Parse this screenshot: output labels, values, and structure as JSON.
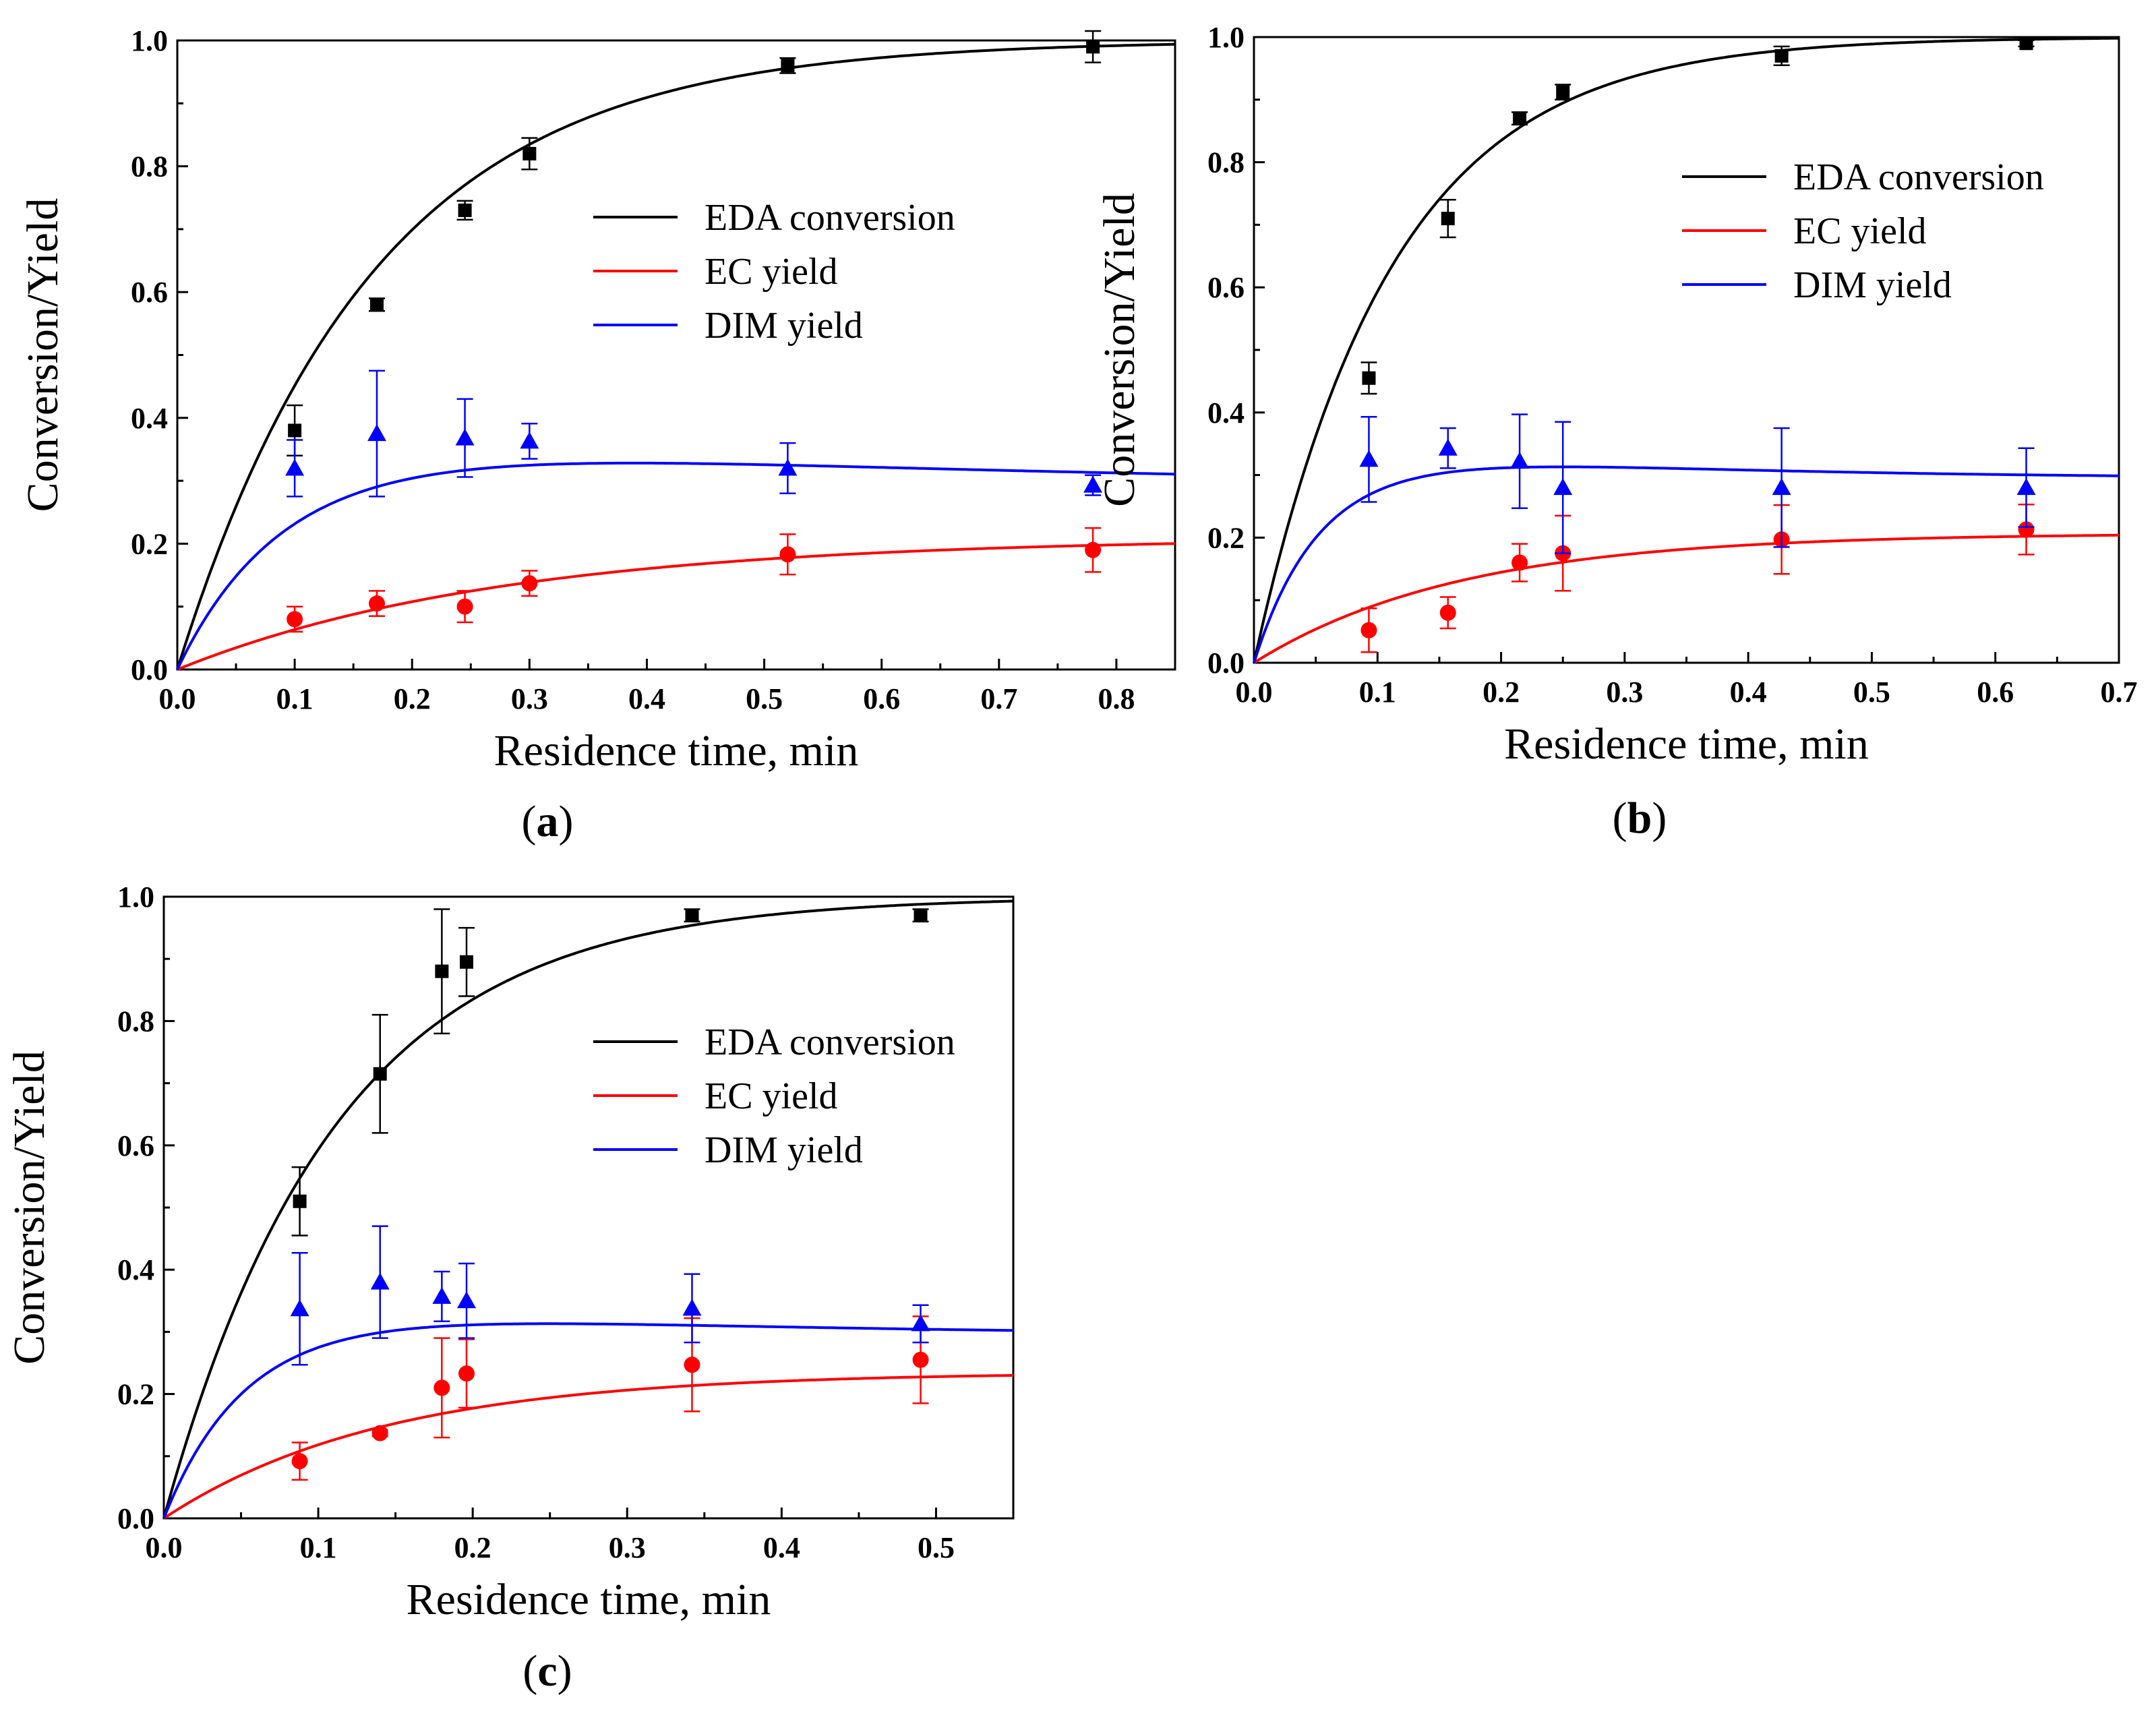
{
  "colors": {
    "eda": "#000000",
    "ec": "#ff0000",
    "dim": "#0000ff"
  },
  "chart_data": [
    {
      "panel": "(a)",
      "panel_letter": "a",
      "type": "scatter",
      "xlabel": "Residence time, min",
      "ylabel": "Conversion/Yield",
      "xlim": [
        0,
        0.85
      ],
      "ylim": [
        0,
        1.0
      ],
      "xticks": [
        0.0,
        0.1,
        0.2,
        0.3,
        0.4,
        0.5,
        0.6,
        0.7,
        0.8
      ],
      "xtick_labels": [
        "0.0",
        "0.1",
        "0.2",
        "0.3",
        "0.4",
        "0.5",
        "0.6",
        "0.7",
        "0.8"
      ],
      "yticks": [
        0.0,
        0.2,
        0.4,
        0.6,
        0.8,
        1.0
      ],
      "ytick_labels": [
        "0.0",
        "0.2",
        "0.4",
        "0.6",
        "0.8",
        "1.0"
      ],
      "legend_position": "upper-right",
      "series": [
        {
          "key": "eda",
          "name": "EDA conversion",
          "marker": "square",
          "curve": {
            "model": "conversion",
            "k": 6.0
          },
          "points": [
            {
              "x": 0.1,
              "y": 0.38,
              "err": 0.04
            },
            {
              "x": 0.17,
              "y": 0.58,
              "err": 0.01
            },
            {
              "x": 0.245,
              "y": 0.73,
              "err": 0.015
            },
            {
              "x": 0.3,
              "y": 0.82,
              "err": 0.025
            },
            {
              "x": 0.52,
              "y": 0.96,
              "err": 0.012
            },
            {
              "x": 0.78,
              "y": 0.99,
              "err": 0.025
            }
          ]
        },
        {
          "key": "ec",
          "name": "EC yield",
          "marker": "circle",
          "curve": {
            "model": "growth",
            "a": 0.21,
            "k": 3.6
          },
          "points": [
            {
              "x": 0.1,
              "y": 0.08,
              "err": 0.02
            },
            {
              "x": 0.17,
              "y": 0.105,
              "err": 0.02
            },
            {
              "x": 0.245,
              "y": 0.1,
              "err": 0.025
            },
            {
              "x": 0.3,
              "y": 0.137,
              "err": 0.02
            },
            {
              "x": 0.52,
              "y": 0.183,
              "err": 0.032
            },
            {
              "x": 0.78,
              "y": 0.19,
              "err": 0.035
            }
          ]
        },
        {
          "key": "dim",
          "name": "DIM yield",
          "marker": "triangle",
          "curve": {
            "model": "peak",
            "a": 0.295,
            "b": 0.36,
            "k1": 12.0,
            "k2": 3.5
          },
          "points": [
            {
              "x": 0.1,
              "y": 0.32,
              "err": 0.045
            },
            {
              "x": 0.17,
              "y": 0.375,
              "err": 0.1
            },
            {
              "x": 0.245,
              "y": 0.368,
              "err": 0.062
            },
            {
              "x": 0.3,
              "y": 0.363,
              "err": 0.028
            },
            {
              "x": 0.52,
              "y": 0.32,
              "err": 0.04
            },
            {
              "x": 0.78,
              "y": 0.293,
              "err": 0.016
            }
          ]
        }
      ]
    },
    {
      "panel": "(b)",
      "panel_letter": "b",
      "type": "scatter",
      "xlabel": "Residence time, min",
      "ylabel": "Conversion/Yield",
      "xlim": [
        0,
        0.7
      ],
      "ylim": [
        0,
        1.0
      ],
      "xticks": [
        0.0,
        0.1,
        0.2,
        0.3,
        0.4,
        0.5,
        0.6,
        0.7
      ],
      "xtick_labels": [
        "0.0",
        "0.1",
        "0.2",
        "0.3",
        "0.4",
        "0.5",
        "0.6",
        "0.7"
      ],
      "yticks": [
        0.0,
        0.2,
        0.4,
        0.6,
        0.8,
        1.0
      ],
      "ytick_labels": [
        "0.0",
        "0.2",
        "0.4",
        "0.6",
        "0.8",
        "1.0"
      ],
      "legend_position": "upper-right",
      "series": [
        {
          "key": "eda",
          "name": "EDA conversion",
          "marker": "square",
          "curve": {
            "model": "conversion",
            "k": 9.0
          },
          "points": [
            {
              "x": 0.093,
              "y": 0.455,
              "err": 0.025
            },
            {
              "x": 0.157,
              "y": 0.71,
              "err": 0.03
            },
            {
              "x": 0.215,
              "y": 0.87,
              "err": 0.01
            },
            {
              "x": 0.25,
              "y": 0.912,
              "err": 0.012
            },
            {
              "x": 0.427,
              "y": 0.97,
              "err": 0.015
            },
            {
              "x": 0.625,
              "y": 0.99,
              "err": 0.005
            }
          ]
        },
        {
          "key": "ec",
          "name": "EC yield",
          "marker": "circle",
          "curve": {
            "model": "growth",
            "a": 0.207,
            "k": 6.0
          },
          "points": [
            {
              "x": 0.093,
              "y": 0.052,
              "err": 0.035
            },
            {
              "x": 0.157,
              "y": 0.08,
              "err": 0.025
            },
            {
              "x": 0.215,
              "y": 0.16,
              "err": 0.03
            },
            {
              "x": 0.25,
              "y": 0.175,
              "err": 0.06
            },
            {
              "x": 0.427,
              "y": 0.197,
              "err": 0.055
            },
            {
              "x": 0.625,
              "y": 0.213,
              "err": 0.04
            }
          ]
        },
        {
          "key": "dim",
          "name": "DIM yield",
          "marker": "triangle",
          "curve": {
            "model": "peak",
            "a": 0.295,
            "b": 0.36,
            "k1": 20.0,
            "k2": 6.0
          },
          "points": [
            {
              "x": 0.093,
              "y": 0.325,
              "err": 0.068
            },
            {
              "x": 0.157,
              "y": 0.343,
              "err": 0.032
            },
            {
              "x": 0.215,
              "y": 0.322,
              "err": 0.075
            },
            {
              "x": 0.25,
              "y": 0.28,
              "err": 0.105
            },
            {
              "x": 0.427,
              "y": 0.28,
              "err": 0.095
            },
            {
              "x": 0.625,
              "y": 0.28,
              "err": 0.063
            }
          ]
        }
      ]
    },
    {
      "panel": "(c)",
      "panel_letter": "c",
      "type": "scatter",
      "xlabel": "Residence time, min",
      "ylabel": "Conversion/Yield",
      "xlim": [
        0,
        0.55
      ],
      "ylim": [
        0,
        1.0
      ],
      "xticks": [
        0.0,
        0.1,
        0.2,
        0.3,
        0.4,
        0.5
      ],
      "xtick_labels": [
        "0.0",
        "0.1",
        "0.2",
        "0.3",
        "0.4",
        "0.5"
      ],
      "yticks": [
        0.0,
        0.2,
        0.4,
        0.6,
        0.8,
        1.0
      ],
      "ytick_labels": [
        "0.0",
        "0.2",
        "0.4",
        "0.6",
        "0.8",
        "1.0"
      ],
      "legend_position": "upper-right",
      "series": [
        {
          "key": "eda",
          "name": "EDA conversion",
          "marker": "square",
          "curve": {
            "model": "conversion",
            "k": 9.0
          },
          "points": [
            {
              "x": 0.088,
              "y": 0.51,
              "err": 0.055
            },
            {
              "x": 0.14,
              "y": 0.715,
              "err": 0.095
            },
            {
              "x": 0.18,
              "y": 0.88,
              "err": 0.1
            },
            {
              "x": 0.196,
              "y": 0.895,
              "err": 0.055
            },
            {
              "x": 0.342,
              "y": 0.97,
              "err": 0.01
            },
            {
              "x": 0.49,
              "y": 0.97,
              "err": 0.01
            }
          ]
        },
        {
          "key": "ec",
          "name": "EC yield",
          "marker": "circle",
          "curve": {
            "model": "growth",
            "a": 0.235,
            "k": 7.0
          },
          "points": [
            {
              "x": 0.088,
              "y": 0.092,
              "err": 0.03
            },
            {
              "x": 0.14,
              "y": 0.137,
              "err": 0.005
            },
            {
              "x": 0.18,
              "y": 0.21,
              "err": 0.08
            },
            {
              "x": 0.196,
              "y": 0.233,
              "err": 0.055
            },
            {
              "x": 0.342,
              "y": 0.247,
              "err": 0.075
            },
            {
              "x": 0.49,
              "y": 0.255,
              "err": 0.07
            }
          ]
        },
        {
          "key": "dim",
          "name": "DIM yield",
          "marker": "triangle",
          "curve": {
            "model": "peak",
            "a": 0.295,
            "b": 0.36,
            "k1": 20.0,
            "k2": 6.0
          },
          "points": [
            {
              "x": 0.088,
              "y": 0.337,
              "err": 0.09
            },
            {
              "x": 0.14,
              "y": 0.38,
              "err": 0.09
            },
            {
              "x": 0.18,
              "y": 0.357,
              "err": 0.04
            },
            {
              "x": 0.196,
              "y": 0.35,
              "err": 0.06
            },
            {
              "x": 0.342,
              "y": 0.338,
              "err": 0.055
            },
            {
              "x": 0.49,
              "y": 0.313,
              "err": 0.03
            }
          ]
        }
      ]
    }
  ]
}
